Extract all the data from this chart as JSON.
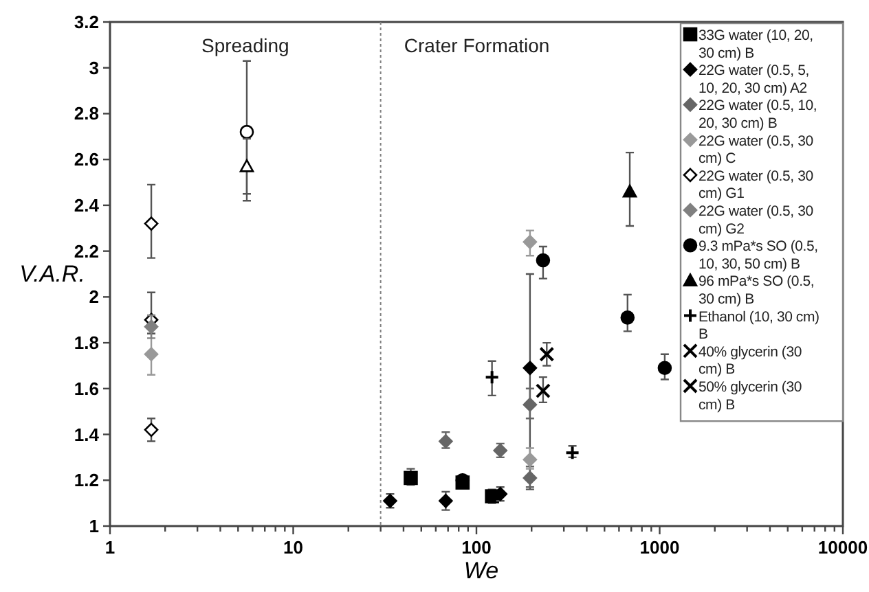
{
  "chart_data": {
    "type": "scatter",
    "xlabel": "We",
    "ylabel": "V.A.R.",
    "log": "x",
    "xlim": [
      1,
      10000
    ],
    "xticks": [
      1,
      {
        "value": 2,
        "label": null
      },
      {
        "value": 3,
        "label": null
      },
      {
        "value": 4,
        "label": null
      },
      {
        "value": 5,
        "label": null
      },
      {
        "value": 6,
        "label": null
      },
      {
        "value": 7,
        "label": null
      },
      {
        "value": 8,
        "label": null
      },
      {
        "value": 9,
        "label": null
      },
      10,
      {
        "value": 20,
        "label": null
      },
      {
        "value": 30,
        "label": null
      },
      {
        "value": 40,
        "label": null
      },
      {
        "value": 50,
        "label": null
      },
      {
        "value": 60,
        "label": null
      },
      {
        "value": 70,
        "label": null
      },
      {
        "value": 80,
        "label": null
      },
      {
        "value": 90,
        "label": null
      },
      100,
      {
        "value": 200,
        "label": null
      },
      {
        "value": 300,
        "label": null
      },
      {
        "value": 400,
        "label": null
      },
      {
        "value": 500,
        "label": null
      },
      {
        "value": 600,
        "label": null
      },
      {
        "value": 700,
        "label": null
      },
      {
        "value": 800,
        "label": null
      },
      {
        "value": 900,
        "label": null
      },
      1000,
      {
        "value": 2000,
        "label": null
      },
      {
        "value": 3000,
        "label": null
      },
      {
        "value": 4000,
        "label": null
      },
      {
        "value": 5000,
        "label": null
      },
      {
        "value": 6000,
        "label": null
      },
      {
        "value": 7000,
        "label": null
      },
      {
        "value": 8000,
        "label": null
      },
      {
        "value": 9000,
        "label": null
      },
      10000
    ],
    "ylim": [
      1,
      3.2
    ],
    "yticks": [
      1,
      1.2,
      1.4,
      1.6,
      1.8,
      2,
      2.2,
      2.4,
      2.6,
      2.8,
      3,
      3.2
    ],
    "grid": false,
    "legend": "top right",
    "ref_lines": [
      {
        "axis": "x",
        "value": 30,
        "line_style": "dotted",
        "color": "#808080"
      }
    ],
    "annotations": [
      "Spreading",
      "Crater Formation"
    ],
    "series": [
      {
        "name": "33G water (10, 20, 30 cm) B",
        "color": "#000000",
        "marker": "square",
        "x": [
          43.8,
          84,
          121.6
        ],
        "values": [
          1.21,
          1.19,
          1.13
        ],
        "errors": [
          [
            1.18,
            1.25
          ],
          null,
          [
            1.1,
            1.16
          ]
        ]
      },
      {
        "name": "22G water (0.5, 5, 10, 20, 30 cm) A2",
        "color": "#000000",
        "marker": "diamond",
        "x": [
          33.8,
          68,
          135,
          196
        ],
        "values": [
          1.11,
          1.11,
          1.14,
          1.69
        ],
        "errors": [
          [
            1.08,
            1.14
          ],
          [
            1.07,
            1.15
          ],
          [
            1.11,
            1.17
          ],
          [
            1.16,
            2.1
          ]
        ]
      },
      {
        "name": "22G water (0.5, 10, 20, 30 cm) B",
        "color": "#666666",
        "marker": "diamond",
        "x": [
          68,
          135,
          196,
          196
        ],
        "values": [
          1.37,
          1.33,
          1.53,
          1.21
        ],
        "errors": [
          [
            1.34,
            1.41
          ],
          [
            1.3,
            1.36
          ],
          [
            1.47,
            1.6
          ],
          [
            1.17,
            1.26
          ]
        ]
      },
      {
        "name": "22G water (0.5, 30 cm) C",
        "color": "#999999",
        "marker": "diamond",
        "x": [
          1.68,
          196,
          196
        ],
        "values": [
          1.75,
          2.24,
          1.29
        ],
        "errors": [
          [
            1.66,
            1.84
          ],
          [
            2.18,
            2.29
          ],
          [
            1.25,
            1.34
          ]
        ]
      },
      {
        "name": "22G water (0.5, 30 cm) G1",
        "color": "#ffffff",
        "marker": "diamond",
        "x": [
          1.68,
          1.68,
          1.68
        ],
        "values": [
          2.32,
          1.9,
          1.42
        ],
        "errors": [
          [
            2.17,
            2.49
          ],
          [
            1.84,
            2.02
          ],
          [
            1.37,
            1.47
          ]
        ]
      },
      {
        "name": "22G water (0.5, 30 cm) G2",
        "color": "#808080",
        "marker": "diamond",
        "x": [
          1.68
        ],
        "values": [
          1.87
        ],
        "errors": [
          [
            1.82,
            1.92
          ]
        ]
      },
      {
        "name": "9.3 mPa*s SO (0.5, 10, 30, 50 cm) B",
        "color": "#000000",
        "marker": "circle",
        "x": [
          84,
          231,
          668,
          1066
        ],
        "values": [
          1.2,
          2.16,
          1.91,
          1.69
        ],
        "errors": [
          null,
          [
            2.08,
            2.22
          ],
          [
            1.85,
            2.01
          ],
          [
            1.64,
            1.75
          ]
        ]
      },
      {
        "name": "96 mPa*s SO (0.5, 30 cm) B",
        "color": "#000000",
        "marker": "triangle",
        "x": [
          687
        ],
        "values": [
          2.46
        ],
        "errors": [
          [
            2.31,
            2.63
          ]
        ]
      },
      {
        "name": "Ethanol (10, 30 cm) B",
        "color": "#000000",
        "marker": "plus",
        "x": [
          121.6,
          334
        ],
        "values": [
          1.65,
          1.32
        ],
        "errors": [
          [
            1.57,
            1.72
          ],
          [
            1.3,
            1.35
          ]
        ]
      },
      {
        "name": "40% glycerin (30 cm) B",
        "color": "#000000",
        "marker": "cross",
        "x": [
          231
        ],
        "values": [
          1.59
        ],
        "errors": [
          [
            1.54,
            1.65
          ]
        ]
      },
      {
        "name": "50% glycerin (30 cm) B",
        "color": "#000000",
        "marker": "cross",
        "x": [
          242
        ],
        "values": [
          1.75
        ],
        "errors": [
          [
            1.7,
            1.8
          ]
        ]
      },
      {
        "color": "#ffffff",
        "marker": "circle",
        "x": [
          5.58
        ],
        "values": [
          2.72
        ],
        "errors": [
          [
            2.42,
            3.03
          ]
        ]
      },
      {
        "color": "#ffffff",
        "marker": "triangle",
        "x": [
          5.58
        ],
        "values": [
          2.57
        ],
        "errors": [
          [
            2.45,
            2.69
          ]
        ]
      }
    ]
  }
}
